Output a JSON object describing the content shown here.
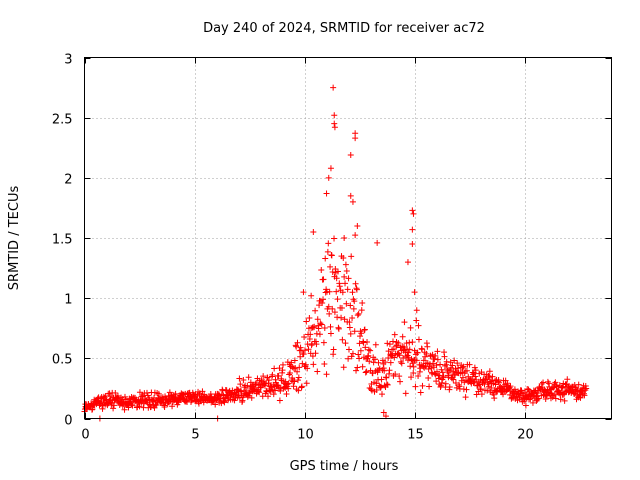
{
  "chart_data": {
    "type": "scatter",
    "title": "Day 240 of 2024, SRMTID for receiver ac72",
    "xlabel": "GPS time / hours",
    "ylabel": "SRMTID / TECUs",
    "xlim": [
      0,
      23.95
    ],
    "ylim": [
      0,
      3
    ],
    "x_ticks": [
      0,
      5,
      10,
      15,
      20
    ],
    "x_tick_labels": [
      "0",
      "5",
      "10",
      "15",
      "20"
    ],
    "y_ticks": [
      0,
      0.5,
      1,
      1.5,
      2,
      2.5,
      3
    ],
    "y_tick_labels": [
      "0",
      "0.5",
      "1",
      "1.5",
      "2",
      "2.5",
      "3"
    ],
    "grid": true,
    "marker": "+",
    "color": "#ff0000",
    "series": [
      {
        "name": "SRMTID",
        "envelope": {
          "x": [
            0,
            0.5,
            1,
            2,
            3,
            4,
            5,
            6,
            7,
            8,
            9,
            9.5,
            10,
            10.5,
            11,
            11.3,
            11.6,
            12,
            12.3,
            12.6,
            13,
            13.5,
            14,
            14.5,
            15,
            15.5,
            16,
            17,
            18,
            19,
            20,
            21,
            22,
            22.8
          ],
          "center": [
            0.1,
            0.12,
            0.15,
            0.14,
            0.15,
            0.16,
            0.17,
            0.17,
            0.22,
            0.26,
            0.3,
            0.35,
            0.55,
            0.7,
            0.95,
            1.15,
            1.0,
            0.95,
            0.85,
            0.6,
            0.4,
            0.35,
            0.5,
            0.55,
            0.5,
            0.45,
            0.4,
            0.35,
            0.3,
            0.25,
            0.18,
            0.22,
            0.25,
            0.22
          ],
          "spread": [
            0.05,
            0.05,
            0.07,
            0.07,
            0.08,
            0.06,
            0.06,
            0.06,
            0.1,
            0.12,
            0.15,
            0.2,
            0.3,
            0.4,
            0.6,
            0.75,
            0.55,
            0.55,
            0.6,
            0.4,
            0.25,
            0.2,
            0.25,
            0.3,
            0.3,
            0.22,
            0.2,
            0.15,
            0.13,
            0.1,
            0.08,
            0.09,
            0.1,
            0.09
          ]
        },
        "step_hours": 0.02,
        "highlights": [
          {
            "x": 11.3,
            "y": 2.75
          },
          {
            "x": 11.35,
            "y": 2.52
          },
          {
            "x": 11.35,
            "y": 2.45
          },
          {
            "x": 11.38,
            "y": 2.42
          },
          {
            "x": 12.3,
            "y": 2.37
          },
          {
            "x": 12.3,
            "y": 2.33
          },
          {
            "x": 12.1,
            "y": 2.19
          },
          {
            "x": 11.2,
            "y": 2.08
          },
          {
            "x": 11.1,
            "y": 2.0
          },
          {
            "x": 11.0,
            "y": 1.87
          },
          {
            "x": 12.1,
            "y": 1.85
          },
          {
            "x": 12.2,
            "y": 1.8
          },
          {
            "x": 14.9,
            "y": 1.73
          },
          {
            "x": 14.95,
            "y": 1.7
          },
          {
            "x": 14.9,
            "y": 1.57
          },
          {
            "x": 10.4,
            "y": 1.55
          },
          {
            "x": 12.4,
            "y": 1.6
          },
          {
            "x": 13.3,
            "y": 1.46
          },
          {
            "x": 14.9,
            "y": 1.45
          },
          {
            "x": 11.8,
            "y": 1.5
          },
          {
            "x": 10.3,
            "y": 1.02
          },
          {
            "x": 9.95,
            "y": 1.05
          },
          {
            "x": 14.7,
            "y": 1.3
          },
          {
            "x": 15.0,
            "y": 1.05
          },
          {
            "x": 15.1,
            "y": 0.9
          },
          {
            "x": 13.6,
            "y": 0.05
          },
          {
            "x": 13.7,
            "y": 0.02
          },
          {
            "x": 0.7,
            "y": 0.0
          },
          {
            "x": 6.05,
            "y": 0.0
          },
          {
            "x": 0.05,
            "y": 0.1
          }
        ]
      }
    ]
  }
}
